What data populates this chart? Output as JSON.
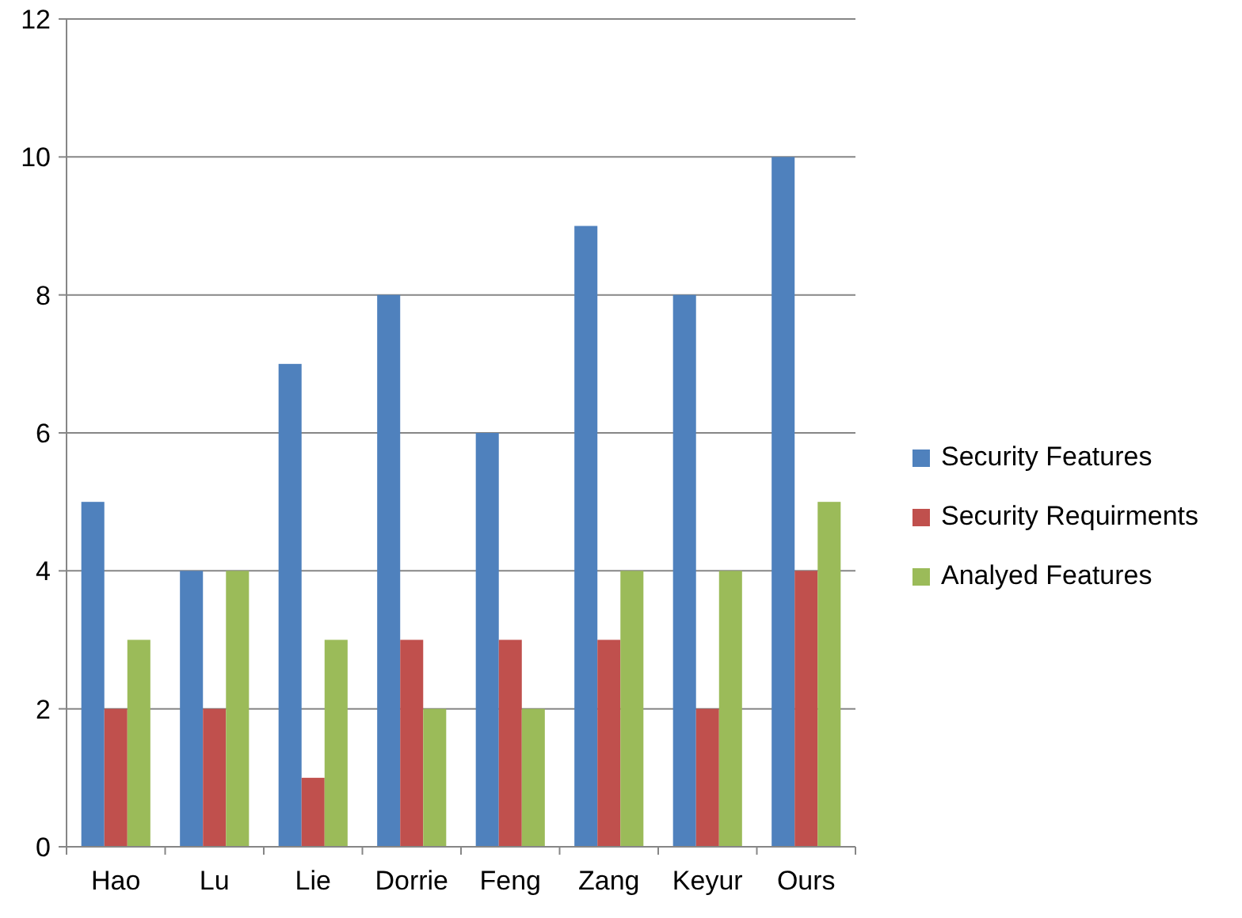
{
  "chart_data": {
    "type": "bar",
    "categories": [
      "Hao",
      "Lu",
      "Lie",
      "Dorrie",
      "Feng",
      "Zang",
      "Keyur",
      "Ours"
    ],
    "series": [
      {
        "name": "Security Features",
        "color": "#4f81bd",
        "values": [
          5,
          4,
          7,
          8,
          6,
          9,
          8,
          10
        ]
      },
      {
        "name": "Security Requirments",
        "color": "#c0504d",
        "values": [
          2,
          2,
          1,
          3,
          3,
          3,
          2,
          4
        ]
      },
      {
        "name": "Analyed Features",
        "color": "#9bbb59",
        "values": [
          3,
          4,
          3,
          2,
          2,
          4,
          4,
          5
        ]
      }
    ],
    "ylim": [
      0,
      12
    ],
    "yticks": [
      0,
      2,
      4,
      6,
      8,
      10,
      12
    ],
    "grid": "y",
    "legend": "right"
  }
}
